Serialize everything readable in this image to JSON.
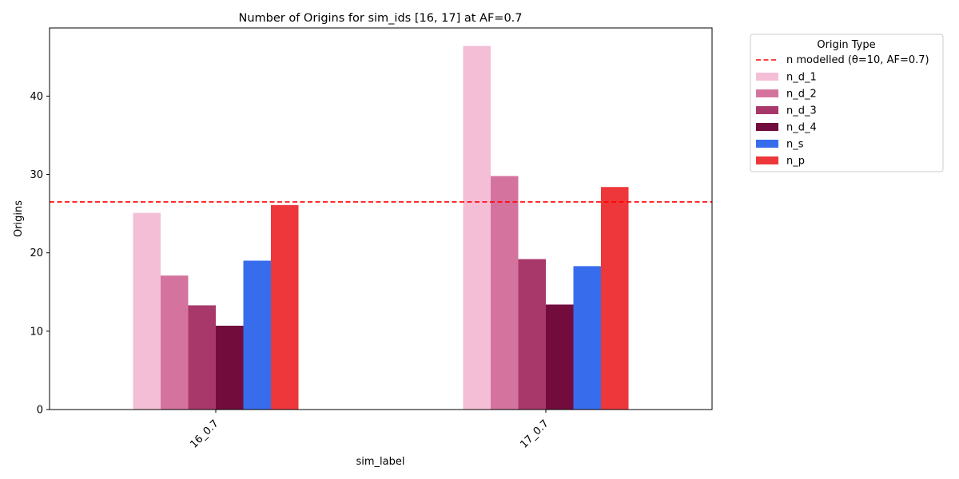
{
  "chart_data": {
    "type": "bar",
    "title": "Number of Origins for sim_ids [16, 17] at AF=0.7",
    "xlabel": "sim_label",
    "ylabel": "Origins",
    "categories": [
      "16_0.7",
      "17_0.7"
    ],
    "ylim": [
      0,
      48.7
    ],
    "yticks": [
      0,
      10,
      20,
      30,
      40
    ],
    "grid": false,
    "legend": {
      "title": "Origin Type",
      "placement": "outside-right",
      "line_label": "n modelled (θ=10, AF=0.7)"
    },
    "reference_line": {
      "label": "n modelled (θ=10, AF=0.7)",
      "y": 26.5,
      "color": "#ff0000",
      "style": "dashed"
    },
    "series": [
      {
        "name": "n_d_1",
        "color": "#f4bfd6",
        "values": [
          25.1,
          46.4
        ]
      },
      {
        "name": "n_d_2",
        "color": "#d4749e",
        "values": [
          17.1,
          29.8
        ]
      },
      {
        "name": "n_d_3",
        "color": "#a8386a",
        "values": [
          13.3,
          19.2
        ]
      },
      {
        "name": "n_d_4",
        "color": "#720c3c",
        "values": [
          10.7,
          13.4
        ]
      },
      {
        "name": "n_s",
        "color": "#376ced",
        "values": [
          19.0,
          18.3
        ]
      },
      {
        "name": "n_p",
        "color": "#ee373a",
        "values": [
          26.1,
          28.4
        ]
      }
    ]
  }
}
